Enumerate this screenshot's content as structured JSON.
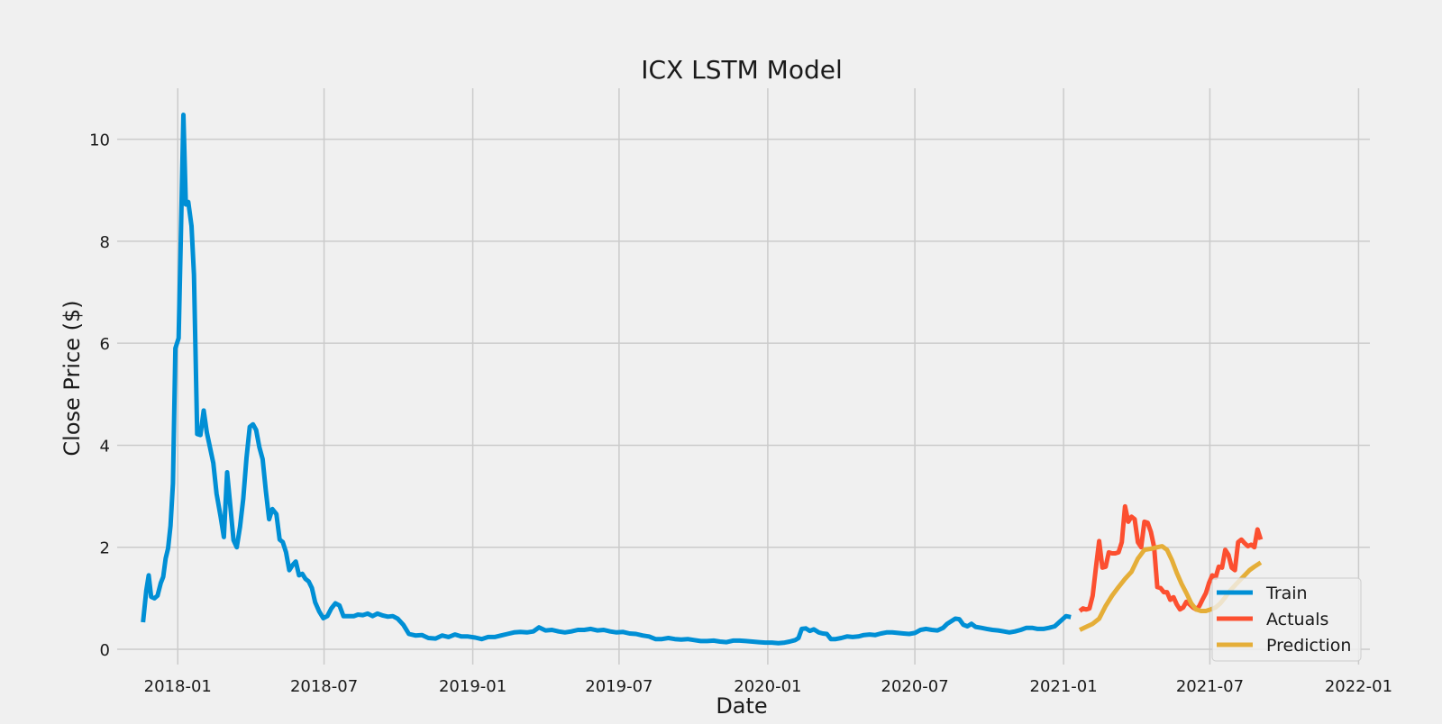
{
  "chart_data": {
    "type": "line",
    "title": "ICX LSTM Model",
    "xlabel": "Date",
    "ylabel": "Close Price ($)",
    "x_ticks": [
      "2018-01",
      "2018-07",
      "2019-01",
      "2019-07",
      "2020-01",
      "2020-07",
      "2021-01",
      "2021-07",
      "2022-01"
    ],
    "xlim": [
      "2017-10-18",
      "2022-01-15"
    ],
    "y_ticks": [
      0,
      2,
      4,
      6,
      8,
      10
    ],
    "ylim": [
      -0.3,
      11.0
    ],
    "grid": true,
    "legend_position": "lower-right",
    "series": [
      {
        "name": "Train",
        "color": "#008fd5",
        "points": [
          [
            "2017-11-19",
            0.53
          ],
          [
            "2017-11-23",
            1.15
          ],
          [
            "2017-11-26",
            1.45
          ],
          [
            "2017-11-29",
            1.03
          ],
          [
            "2017-12-03",
            1.0
          ],
          [
            "2017-12-07",
            1.05
          ],
          [
            "2017-12-11",
            1.3
          ],
          [
            "2017-12-14",
            1.42
          ],
          [
            "2017-12-17",
            1.78
          ],
          [
            "2017-12-20",
            1.98
          ],
          [
            "2017-12-23",
            2.42
          ],
          [
            "2017-12-26",
            3.25
          ],
          [
            "2017-12-29",
            5.9
          ],
          [
            "2018-01-02",
            6.1
          ],
          [
            "2018-01-05",
            8.2
          ],
          [
            "2018-01-08",
            10.48
          ],
          [
            "2018-01-11",
            8.72
          ],
          [
            "2018-01-14",
            8.77
          ],
          [
            "2018-01-18",
            8.3
          ],
          [
            "2018-01-21",
            7.35
          ],
          [
            "2018-01-25",
            4.22
          ],
          [
            "2018-01-29",
            4.2
          ],
          [
            "2018-02-02",
            4.68
          ],
          [
            "2018-02-06",
            4.25
          ],
          [
            "2018-02-10",
            3.95
          ],
          [
            "2018-02-14",
            3.65
          ],
          [
            "2018-02-18",
            3.05
          ],
          [
            "2018-02-23",
            2.6
          ],
          [
            "2018-02-27",
            2.2
          ],
          [
            "2018-03-03",
            3.47
          ],
          [
            "2018-03-07",
            2.82
          ],
          [
            "2018-03-11",
            2.14
          ],
          [
            "2018-03-15",
            2.0
          ],
          [
            "2018-03-19",
            2.4
          ],
          [
            "2018-03-23",
            2.95
          ],
          [
            "2018-03-27",
            3.75
          ],
          [
            "2018-03-31",
            4.36
          ],
          [
            "2018-04-04",
            4.41
          ],
          [
            "2018-04-08",
            4.3
          ],
          [
            "2018-04-12",
            3.96
          ],
          [
            "2018-04-16",
            3.73
          ],
          [
            "2018-04-20",
            3.1
          ],
          [
            "2018-04-24",
            2.55
          ],
          [
            "2018-04-28",
            2.75
          ],
          [
            "2018-05-03",
            2.65
          ],
          [
            "2018-05-07",
            2.15
          ],
          [
            "2018-05-11",
            2.1
          ],
          [
            "2018-05-15",
            1.9
          ],
          [
            "2018-05-19",
            1.55
          ],
          [
            "2018-05-23",
            1.65
          ],
          [
            "2018-05-27",
            1.72
          ],
          [
            "2018-05-31",
            1.45
          ],
          [
            "2018-06-04",
            1.48
          ],
          [
            "2018-06-08",
            1.38
          ],
          [
            "2018-06-12",
            1.33
          ],
          [
            "2018-06-16",
            1.2
          ],
          [
            "2018-06-20",
            0.92
          ],
          [
            "2018-06-25",
            0.74
          ],
          [
            "2018-06-30",
            0.61
          ],
          [
            "2018-07-05",
            0.65
          ],
          [
            "2018-07-10",
            0.8
          ],
          [
            "2018-07-15",
            0.9
          ],
          [
            "2018-07-20",
            0.86
          ],
          [
            "2018-07-25",
            0.65
          ],
          [
            "2018-08-01",
            0.65
          ],
          [
            "2018-08-07",
            0.65
          ],
          [
            "2018-08-12",
            0.68
          ],
          [
            "2018-08-18",
            0.67
          ],
          [
            "2018-08-24",
            0.7
          ],
          [
            "2018-08-30",
            0.65
          ],
          [
            "2018-09-05",
            0.7
          ],
          [
            "2018-09-12",
            0.66
          ],
          [
            "2018-09-18",
            0.64
          ],
          [
            "2018-09-24",
            0.65
          ],
          [
            "2018-09-30",
            0.6
          ],
          [
            "2018-10-07",
            0.48
          ],
          [
            "2018-10-14",
            0.3
          ],
          [
            "2018-10-22",
            0.27
          ],
          [
            "2018-10-30",
            0.28
          ],
          [
            "2018-11-07",
            0.22
          ],
          [
            "2018-11-16",
            0.21
          ],
          [
            "2018-11-24",
            0.27
          ],
          [
            "2018-12-02",
            0.24
          ],
          [
            "2018-12-10",
            0.29
          ],
          [
            "2018-12-18",
            0.25
          ],
          [
            "2018-12-26",
            0.25
          ],
          [
            "2019-01-04",
            0.23
          ],
          [
            "2019-01-12",
            0.2
          ],
          [
            "2019-01-20",
            0.24
          ],
          [
            "2019-01-28",
            0.24
          ],
          [
            "2019-02-05",
            0.27
          ],
          [
            "2019-02-13",
            0.3
          ],
          [
            "2019-02-21",
            0.33
          ],
          [
            "2019-03-01",
            0.34
          ],
          [
            "2019-03-09",
            0.33
          ],
          [
            "2019-03-17",
            0.35
          ],
          [
            "2019-03-24",
            0.43
          ],
          [
            "2019-04-01",
            0.37
          ],
          [
            "2019-04-09",
            0.38
          ],
          [
            "2019-04-17",
            0.35
          ],
          [
            "2019-04-25",
            0.33
          ],
          [
            "2019-05-03",
            0.35
          ],
          [
            "2019-05-11",
            0.38
          ],
          [
            "2019-05-19",
            0.38
          ],
          [
            "2019-05-27",
            0.4
          ],
          [
            "2019-06-04",
            0.37
          ],
          [
            "2019-06-12",
            0.38
          ],
          [
            "2019-06-20",
            0.35
          ],
          [
            "2019-06-28",
            0.33
          ],
          [
            "2019-07-06",
            0.34
          ],
          [
            "2019-07-14",
            0.31
          ],
          [
            "2019-07-22",
            0.3
          ],
          [
            "2019-07-30",
            0.27
          ],
          [
            "2019-08-07",
            0.25
          ],
          [
            "2019-08-15",
            0.2
          ],
          [
            "2019-08-23",
            0.2
          ],
          [
            "2019-08-31",
            0.22
          ],
          [
            "2019-09-08",
            0.2
          ],
          [
            "2019-09-16",
            0.19
          ],
          [
            "2019-09-24",
            0.2
          ],
          [
            "2019-10-02",
            0.18
          ],
          [
            "2019-10-10",
            0.16
          ],
          [
            "2019-10-18",
            0.16
          ],
          [
            "2019-10-26",
            0.17
          ],
          [
            "2019-11-03",
            0.15
          ],
          [
            "2019-11-11",
            0.14
          ],
          [
            "2019-11-19",
            0.17
          ],
          [
            "2019-11-27",
            0.17
          ],
          [
            "2019-12-05",
            0.16
          ],
          [
            "2019-12-13",
            0.15
          ],
          [
            "2019-12-21",
            0.14
          ],
          [
            "2019-12-29",
            0.13
          ],
          [
            "2020-01-06",
            0.13
          ],
          [
            "2020-01-14",
            0.12
          ],
          [
            "2020-01-22",
            0.13
          ],
          [
            "2020-01-28",
            0.15
          ],
          [
            "2020-02-04",
            0.18
          ],
          [
            "2020-02-08",
            0.22
          ],
          [
            "2020-02-12",
            0.4
          ],
          [
            "2020-02-17",
            0.41
          ],
          [
            "2020-02-22",
            0.36
          ],
          [
            "2020-02-27",
            0.39
          ],
          [
            "2020-03-04",
            0.33
          ],
          [
            "2020-03-09",
            0.31
          ],
          [
            "2020-03-14",
            0.3
          ],
          [
            "2020-03-19",
            0.2
          ],
          [
            "2020-03-25",
            0.2
          ],
          [
            "2020-04-01",
            0.22
          ],
          [
            "2020-04-08",
            0.25
          ],
          [
            "2020-04-15",
            0.24
          ],
          [
            "2020-04-22",
            0.25
          ],
          [
            "2020-04-29",
            0.28
          ],
          [
            "2020-05-06",
            0.29
          ],
          [
            "2020-05-13",
            0.28
          ],
          [
            "2020-05-20",
            0.31
          ],
          [
            "2020-05-27",
            0.33
          ],
          [
            "2020-06-03",
            0.33
          ],
          [
            "2020-06-10",
            0.32
          ],
          [
            "2020-06-17",
            0.31
          ],
          [
            "2020-06-24",
            0.3
          ],
          [
            "2020-07-01",
            0.32
          ],
          [
            "2020-07-08",
            0.38
          ],
          [
            "2020-07-15",
            0.4
          ],
          [
            "2020-07-22",
            0.38
          ],
          [
            "2020-07-29",
            0.37
          ],
          [
            "2020-08-05",
            0.42
          ],
          [
            "2020-08-10",
            0.5
          ],
          [
            "2020-08-15",
            0.55
          ],
          [
            "2020-08-20",
            0.6
          ],
          [
            "2020-08-25",
            0.59
          ],
          [
            "2020-08-30",
            0.48
          ],
          [
            "2020-09-04",
            0.45
          ],
          [
            "2020-09-09",
            0.5
          ],
          [
            "2020-09-14",
            0.44
          ],
          [
            "2020-09-21",
            0.42
          ],
          [
            "2020-09-28",
            0.4
          ],
          [
            "2020-10-05",
            0.38
          ],
          [
            "2020-10-12",
            0.37
          ],
          [
            "2020-10-19",
            0.35
          ],
          [
            "2020-10-26",
            0.33
          ],
          [
            "2020-11-02",
            0.35
          ],
          [
            "2020-11-09",
            0.38
          ],
          [
            "2020-11-16",
            0.42
          ],
          [
            "2020-11-23",
            0.42
          ],
          [
            "2020-11-30",
            0.4
          ],
          [
            "2020-12-07",
            0.4
          ],
          [
            "2020-12-14",
            0.42
          ],
          [
            "2020-12-21",
            0.45
          ],
          [
            "2020-12-28",
            0.55
          ],
          [
            "2021-01-04",
            0.65
          ],
          [
            "2021-01-10",
            0.63
          ]
        ]
      },
      {
        "name": "Actuals",
        "color": "#fc4f30",
        "points": [
          [
            "2021-01-21",
            0.75
          ],
          [
            "2021-01-25",
            0.8
          ],
          [
            "2021-01-29",
            0.78
          ],
          [
            "2021-02-02",
            0.8
          ],
          [
            "2021-02-06",
            1.05
          ],
          [
            "2021-02-10",
            1.6
          ],
          [
            "2021-02-14",
            2.12
          ],
          [
            "2021-02-18",
            1.6
          ],
          [
            "2021-02-22",
            1.62
          ],
          [
            "2021-02-26",
            1.9
          ],
          [
            "2021-03-02",
            1.88
          ],
          [
            "2021-03-06",
            1.88
          ],
          [
            "2021-03-10",
            1.9
          ],
          [
            "2021-03-14",
            2.1
          ],
          [
            "2021-03-18",
            2.8
          ],
          [
            "2021-03-22",
            2.5
          ],
          [
            "2021-03-26",
            2.6
          ],
          [
            "2021-03-30",
            2.55
          ],
          [
            "2021-04-03",
            2.1
          ],
          [
            "2021-04-07",
            2.0
          ],
          [
            "2021-04-11",
            2.5
          ],
          [
            "2021-04-15",
            2.48
          ],
          [
            "2021-04-19",
            2.3
          ],
          [
            "2021-04-23",
            2.0
          ],
          [
            "2021-04-27",
            1.22
          ],
          [
            "2021-05-01",
            1.2
          ],
          [
            "2021-05-05",
            1.12
          ],
          [
            "2021-05-09",
            1.12
          ],
          [
            "2021-05-13",
            0.97
          ],
          [
            "2021-05-17",
            1.02
          ],
          [
            "2021-05-21",
            0.88
          ],
          [
            "2021-05-25",
            0.78
          ],
          [
            "2021-05-29",
            0.82
          ],
          [
            "2021-06-02",
            0.93
          ],
          [
            "2021-06-06",
            0.88
          ],
          [
            "2021-06-10",
            0.82
          ],
          [
            "2021-06-14",
            0.78
          ],
          [
            "2021-06-18",
            0.85
          ],
          [
            "2021-06-22",
            0.98
          ],
          [
            "2021-06-26",
            1.1
          ],
          [
            "2021-06-30",
            1.3
          ],
          [
            "2021-07-04",
            1.45
          ],
          [
            "2021-07-08",
            1.4
          ],
          [
            "2021-07-12",
            1.62
          ],
          [
            "2021-07-16",
            1.6
          ],
          [
            "2021-07-20",
            1.95
          ],
          [
            "2021-07-24",
            1.85
          ],
          [
            "2021-07-28",
            1.6
          ],
          [
            "2021-08-01",
            1.55
          ],
          [
            "2021-08-05",
            2.1
          ],
          [
            "2021-08-09",
            2.15
          ],
          [
            "2021-08-13",
            2.08
          ],
          [
            "2021-08-17",
            2.02
          ],
          [
            "2021-08-21",
            2.05
          ],
          [
            "2021-08-25",
            2.0
          ],
          [
            "2021-08-29",
            2.35
          ],
          [
            "2021-09-02",
            2.15
          ]
        ]
      },
      {
        "name": "Prediction",
        "color": "#e5ae38",
        "points": [
          [
            "2021-01-21",
            0.38
          ],
          [
            "2021-01-29",
            0.44
          ],
          [
            "2021-02-06",
            0.5
          ],
          [
            "2021-02-14",
            0.6
          ],
          [
            "2021-02-22",
            0.85
          ],
          [
            "2021-03-02",
            1.05
          ],
          [
            "2021-03-10",
            1.22
          ],
          [
            "2021-03-18",
            1.38
          ],
          [
            "2021-03-26",
            1.52
          ],
          [
            "2021-04-03",
            1.78
          ],
          [
            "2021-04-11",
            1.95
          ],
          [
            "2021-04-19",
            1.97
          ],
          [
            "2021-04-27",
            2.0
          ],
          [
            "2021-05-03",
            2.02
          ],
          [
            "2021-05-09",
            1.95
          ],
          [
            "2021-05-15",
            1.75
          ],
          [
            "2021-05-21",
            1.5
          ],
          [
            "2021-05-27",
            1.28
          ],
          [
            "2021-06-02",
            1.1
          ],
          [
            "2021-06-08",
            0.9
          ],
          [
            "2021-06-14",
            0.78
          ],
          [
            "2021-06-20",
            0.75
          ],
          [
            "2021-06-26",
            0.75
          ],
          [
            "2021-07-02",
            0.78
          ],
          [
            "2021-07-08",
            0.82
          ],
          [
            "2021-07-14",
            0.9
          ],
          [
            "2021-07-20",
            1.02
          ],
          [
            "2021-07-26",
            1.15
          ],
          [
            "2021-08-01",
            1.25
          ],
          [
            "2021-08-07",
            1.35
          ],
          [
            "2021-08-13",
            1.45
          ],
          [
            "2021-08-19",
            1.55
          ],
          [
            "2021-08-25",
            1.62
          ],
          [
            "2021-09-02",
            1.7
          ]
        ]
      }
    ]
  }
}
